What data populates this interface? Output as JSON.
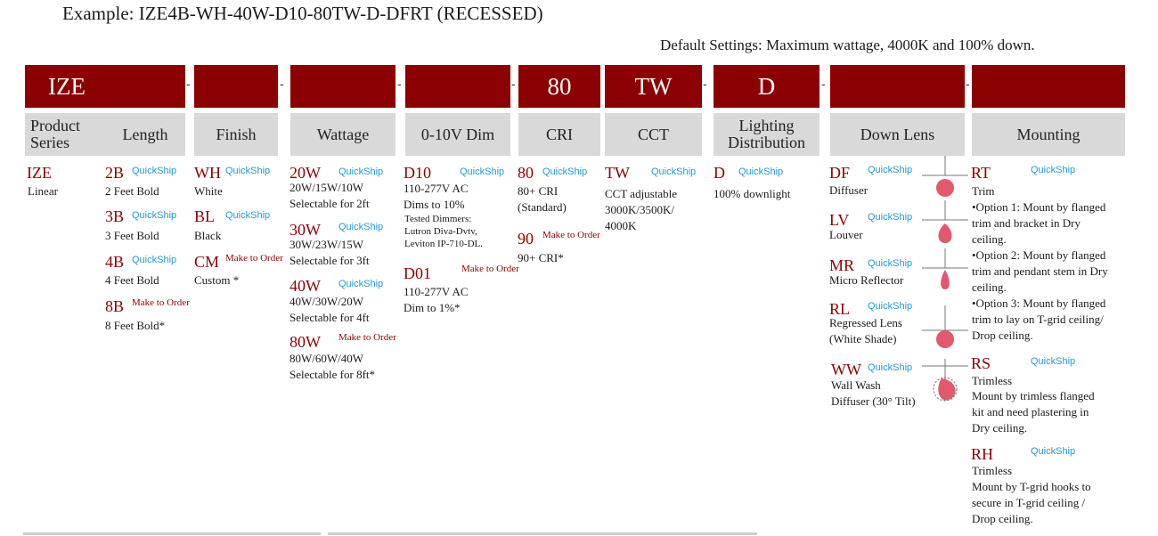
{
  "example": "Example: IZE4B-WH-40W-D10-80TW-D-DFRT (RECESSED)",
  "default_settings": "Default Settings: Maximum wattage, 4000K and 100% down.",
  "code_boxes": [
    "IZE",
    "",
    "",
    "",
    "",
    "80",
    "TW",
    "D",
    "",
    ""
  ],
  "separators": [
    "-",
    "-",
    "-",
    "-",
    "-",
    "-",
    "-"
  ],
  "headers": [
    "Product\nSeries",
    "Length",
    "Finish",
    "Wattage",
    "0-10V Dim",
    "CRI",
    "CCT",
    "Lighting\nDistribution",
    "Down Lens",
    "Mounting"
  ],
  "labels": {
    "quickship": "QuickShip",
    "make_to_order": "Make to Order"
  },
  "product_series": {
    "code": "IZE",
    "desc": "Linear"
  },
  "length": [
    {
      "code": "2B",
      "desc": "2 Feet Bold"
    },
    {
      "code": "3B",
      "desc": "3 Feet Bold"
    },
    {
      "code": "4B",
      "desc": "4 Feet Bold"
    },
    {
      "code": "8B",
      "desc": "8 Feet Bold*"
    }
  ],
  "finish": [
    {
      "code": "WH",
      "desc": "White"
    },
    {
      "code": "BL",
      "desc": "Black"
    },
    {
      "code": "CM",
      "desc": "Custom *"
    }
  ],
  "wattage": [
    {
      "code": "20W",
      "desc": "20W/15W/10W\nSelectable for 2ft"
    },
    {
      "code": "30W",
      "desc": "30W/23W/15W\nSelectable for 3ft"
    },
    {
      "code": "40W",
      "desc": "40W/30W/20W\nSelectable for 4ft"
    },
    {
      "code": "80W",
      "desc": "80W/60W/40W\nSelectable for 8ft*"
    }
  ],
  "dim": [
    {
      "code": "D10",
      "desc": "110-277V  AC\nDims to 10%",
      "tested": "Tested Dimmers:\n Lutron  Diva-Dvtv,\n Leviton  IP-710-DL."
    },
    {
      "code": "D01",
      "desc": "110-277V AC\nDim to 1%*"
    }
  ],
  "cri": [
    {
      "code": "80",
      "desc": "80+ CRI\n(Standard)"
    },
    {
      "code": "90",
      "desc": "90+ CRI*"
    }
  ],
  "cct": {
    "code": "TW",
    "desc": "CCT adjustable\n3000K/3500K/\n4000K"
  },
  "distribution": {
    "code": "D",
    "desc": "100% downlight"
  },
  "down_lens": [
    {
      "code": "DF",
      "desc": "Diffuser",
      "icon": "diffuser-icon"
    },
    {
      "code": "LV",
      "desc": "Louver",
      "icon": "louver-icon"
    },
    {
      "code": "MR",
      "desc": "Micro Reflector",
      "icon": "micro-reflector-icon"
    },
    {
      "code": "RL",
      "desc": "Regressed Lens\n(White Shade)",
      "icon": "regressed-lens-icon"
    },
    {
      "code": "WW",
      "desc": "Wall Wash\nDiffuser (30° Tilt)",
      "icon": "wall-wash-icon"
    }
  ],
  "mounting": [
    {
      "code": "RT",
      "title": "Trim",
      "desc": "•Option 1: Mount by flanged\n trim and bracket in Dry\n ceiling.\n•Option 2: Mount by flanged\n trim and pendant stem in Dry\n ceiling.\n•Option 3: Mount by flanged\n trim to lay on T-grid ceiling/\n Drop ceiling."
    },
    {
      "code": "RS",
      "title": "Trimless",
      "desc": "Mount by trimless flanged\nkit and need plastering in\nDry ceiling."
    },
    {
      "code": "RH",
      "title": "Trimless",
      "desc": "Mount by T-grid hooks to\nsecure in T-grid ceiling /\nDrop ceiling."
    }
  ],
  "colors": {
    "brand_red": "#8b0000",
    "quickship_blue": "#1f9bd6",
    "header_gray": "#d9d9d9",
    "lens_pink": "#e2596e"
  }
}
